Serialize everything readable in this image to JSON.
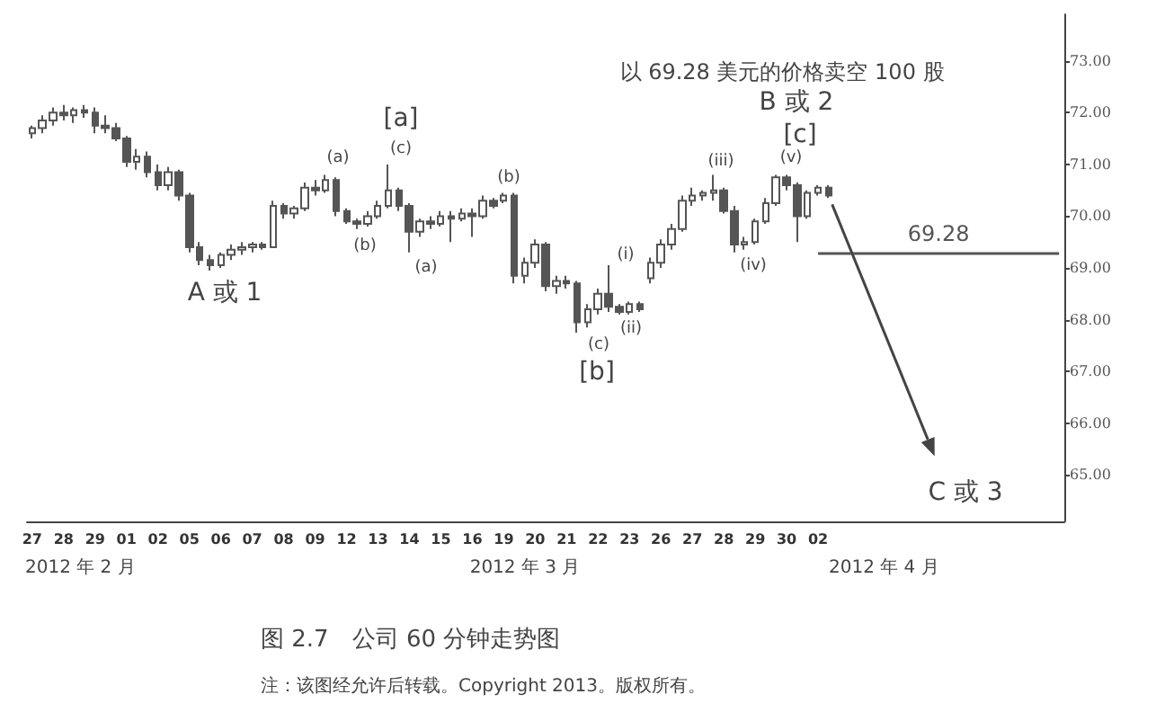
{
  "chart_data": {
    "type": "candlestick",
    "color": "#555555",
    "categories": [
      "27",
      null,
      null,
      "28",
      null,
      null,
      "29",
      null,
      null,
      "01",
      null,
      null,
      "02",
      null,
      null,
      "05",
      null,
      null,
      "06",
      null,
      null,
      "07",
      null,
      null,
      "08",
      null,
      null,
      "09",
      null,
      null,
      "12",
      null,
      null,
      "13",
      null,
      null,
      "14",
      null,
      null,
      "15",
      null,
      null,
      "16",
      null,
      null,
      "19",
      null,
      null,
      "20",
      null,
      null,
      "21",
      null,
      null,
      "22",
      null,
      null,
      "23",
      null,
      null,
      "26",
      null,
      null,
      "27",
      null,
      null,
      "28",
      null,
      null,
      "29",
      null,
      null,
      "30",
      null,
      null,
      "02",
      null,
      null,
      null,
      null,
      null,
      null,
      null,
      null,
      null,
      null,
      null,
      null,
      null,
      null,
      null,
      null,
      null,
      null,
      null,
      null,
      null,
      null,
      null
    ],
    "ohlc": [
      [
        71.6,
        71.75,
        71.5,
        71.7
      ],
      [
        71.7,
        71.95,
        71.6,
        71.85
      ],
      [
        71.85,
        72.1,
        71.75,
        72.0
      ],
      [
        72.0,
        72.15,
        71.85,
        71.95
      ],
      [
        71.95,
        72.1,
        71.8,
        72.05
      ],
      [
        72.05,
        72.15,
        71.9,
        72.0
      ],
      [
        72.0,
        72.1,
        71.6,
        71.75
      ],
      [
        71.75,
        71.95,
        71.6,
        71.7
      ],
      [
        71.7,
        71.8,
        71.45,
        71.5
      ],
      [
        71.5,
        71.55,
        70.95,
        71.05
      ],
      [
        71.05,
        71.3,
        70.9,
        71.15
      ],
      [
        71.15,
        71.25,
        70.75,
        70.85
      ],
      [
        70.85,
        71.0,
        70.5,
        70.6
      ],
      [
        70.6,
        70.95,
        70.5,
        70.85
      ],
      [
        70.85,
        70.9,
        70.3,
        70.4
      ],
      [
        70.4,
        70.45,
        69.3,
        69.4
      ],
      [
        69.4,
        69.5,
        69.05,
        69.15
      ],
      [
        69.15,
        69.25,
        68.95,
        69.05
      ],
      [
        69.05,
        69.3,
        69.0,
        69.25
      ],
      [
        69.25,
        69.45,
        69.15,
        69.35
      ],
      [
        69.35,
        69.5,
        69.25,
        69.4
      ],
      [
        69.4,
        69.5,
        69.3,
        69.45
      ],
      [
        69.45,
        69.5,
        69.35,
        69.4
      ],
      [
        69.4,
        70.3,
        69.4,
        70.2
      ],
      [
        70.2,
        70.25,
        69.95,
        70.05
      ],
      [
        70.05,
        70.2,
        69.95,
        70.15
      ],
      [
        70.15,
        70.65,
        70.1,
        70.55
      ],
      [
        70.55,
        70.7,
        70.4,
        70.5
      ],
      [
        70.5,
        70.8,
        70.45,
        70.7
      ],
      [
        70.7,
        70.75,
        70.0,
        70.1
      ],
      [
        70.1,
        70.15,
        69.85,
        69.9
      ],
      [
        69.9,
        69.95,
        69.75,
        69.85
      ],
      [
        69.85,
        70.1,
        69.8,
        70.0
      ],
      [
        70.0,
        70.3,
        69.95,
        70.2
      ],
      [
        70.2,
        71.0,
        70.15,
        70.5
      ],
      [
        70.5,
        70.55,
        70.1,
        70.2
      ],
      [
        70.2,
        70.25,
        69.3,
        69.7
      ],
      [
        69.7,
        69.95,
        69.6,
        69.9
      ],
      [
        69.9,
        70.0,
        69.75,
        69.85
      ],
      [
        69.85,
        70.1,
        69.8,
        70.0
      ],
      [
        70.0,
        70.1,
        69.5,
        69.95
      ],
      [
        69.95,
        70.15,
        69.9,
        70.05
      ],
      [
        70.05,
        70.15,
        69.6,
        70.0
      ],
      [
        70.0,
        70.4,
        69.95,
        70.3
      ],
      [
        70.3,
        70.35,
        70.15,
        70.2
      ],
      [
        70.3,
        70.45,
        70.25,
        70.4
      ],
      [
        70.4,
        70.45,
        68.7,
        68.85
      ],
      [
        68.85,
        69.2,
        68.7,
        69.1
      ],
      [
        69.1,
        69.55,
        69.0,
        69.45
      ],
      [
        69.45,
        69.5,
        68.55,
        68.65
      ],
      [
        68.65,
        68.85,
        68.5,
        68.75
      ],
      [
        68.75,
        68.85,
        68.6,
        68.7
      ],
      [
        68.7,
        68.75,
        67.75,
        67.95
      ],
      [
        67.95,
        68.3,
        67.85,
        68.2
      ],
      [
        68.2,
        68.6,
        68.1,
        68.5
      ],
      [
        68.5,
        69.05,
        68.15,
        68.25
      ],
      [
        68.25,
        68.3,
        68.1,
        68.15
      ],
      [
        68.15,
        68.35,
        68.1,
        68.3
      ],
      [
        68.3,
        68.35,
        68.15,
        68.2
      ],
      [
        68.8,
        69.2,
        68.7,
        69.1
      ],
      [
        69.1,
        69.55,
        69.0,
        69.45
      ],
      [
        69.45,
        69.85,
        69.35,
        69.75
      ],
      [
        69.75,
        70.4,
        69.7,
        70.3
      ],
      [
        70.3,
        70.55,
        70.2,
        70.4
      ],
      [
        70.4,
        70.5,
        70.3,
        70.45
      ],
      [
        70.45,
        70.8,
        70.3,
        70.5
      ],
      [
        70.5,
        70.55,
        70.05,
        70.1
      ],
      [
        70.1,
        70.2,
        69.3,
        69.45
      ],
      [
        69.45,
        69.6,
        69.35,
        69.5
      ],
      [
        69.5,
        69.95,
        69.45,
        69.9
      ],
      [
        69.9,
        70.35,
        69.85,
        70.25
      ],
      [
        70.25,
        70.8,
        70.2,
        70.75
      ],
      [
        70.75,
        70.8,
        70.5,
        70.6
      ],
      [
        70.6,
        70.65,
        69.5,
        70.0
      ],
      [
        70.0,
        70.5,
        69.95,
        70.45
      ],
      [
        70.45,
        70.6,
        70.4,
        70.55
      ],
      [
        70.55,
        70.6,
        70.35,
        70.4
      ],
      null,
      null,
      null,
      null,
      null,
      null,
      null,
      null,
      null,
      null,
      null,
      null,
      null,
      null,
      null,
      null,
      null,
      null,
      null,
      null,
      null,
      null
    ],
    "ylim": [
      64.1,
      73.9
    ],
    "yticks": [
      {
        "value": 65,
        "label": "65.00"
      },
      {
        "value": 66,
        "label": "66.00"
      },
      {
        "value": 67,
        "label": "67.00"
      },
      {
        "value": 68,
        "label": "68.00"
      },
      {
        "value": 69,
        "label": "69.00"
      },
      {
        "value": 70,
        "label": "70.00"
      },
      {
        "value": 71,
        "label": "71.00"
      },
      {
        "value": 72,
        "label": "72.00"
      },
      {
        "value": 73,
        "label": "73.00"
      }
    ],
    "ref_lines": [
      {
        "axis": "y",
        "value": 69.28,
        "label": "69.28",
        "color": "#555555"
      }
    ],
    "annotations": [
      "A 或 1",
      "(a)",
      "(b)",
      "[a]",
      "(c)",
      "(a)",
      "(b)",
      "(c)",
      "[b]",
      "(i)",
      "(ii)",
      "(iii)",
      "(iv)",
      "(v)",
      "[c]",
      "B 或 2",
      "以 69.28 美元的价格卖空 100 股",
      "C 或 3",
      "2012 年 2 月",
      "2012 年 3 月",
      "2012 年 4 月",
      "图 2.7　公司 60 分钟走势图",
      "注：该图经允许后转载。Copyright 2013。版权所有。"
    ]
  }
}
